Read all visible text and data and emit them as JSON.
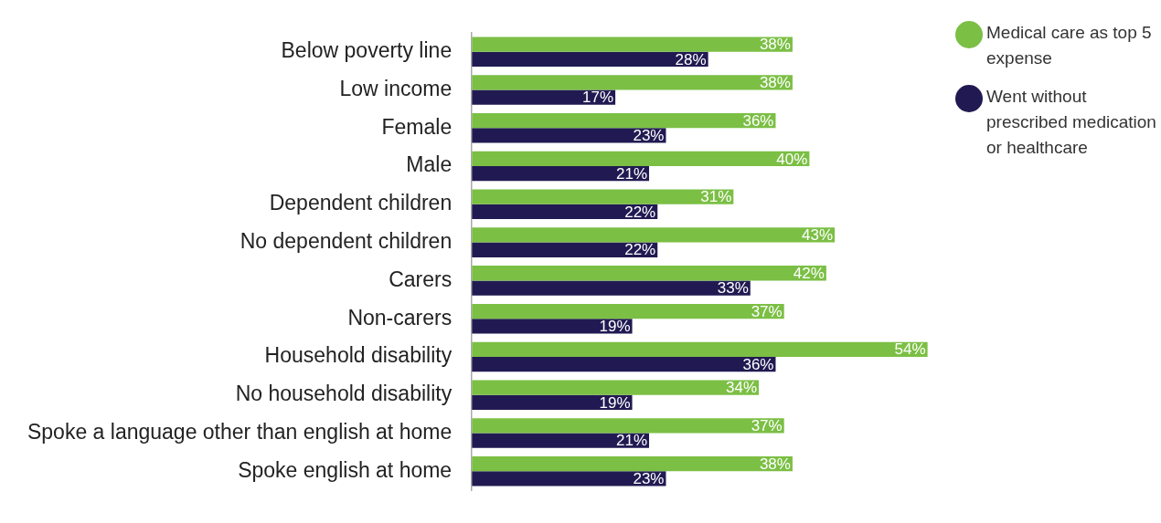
{
  "chart_data": {
    "type": "bar",
    "orientation": "horizontal",
    "legend": "top right",
    "tick_labels": "y",
    "categories": [
      "Below poverty line",
      "Low income",
      "Female",
      "Male",
      "Dependent children",
      "No dependent children",
      "Carers",
      "Non-carers",
      "Household disability",
      "No household disability",
      "Spoke a language other than english at home",
      "Spoke english at home"
    ],
    "series": [
      {
        "name": "Medical care as top 5 expense",
        "color": "#7bbf44",
        "values": [
          38,
          38,
          36,
          40,
          31,
          43,
          42,
          37,
          54,
          34,
          37,
          38
        ],
        "value_labels": [
          "38%",
          "38%",
          "36%",
          "40%",
          "31%",
          "43%",
          "42%",
          "37%",
          "54%",
          "34%",
          "37%",
          "38%"
        ]
      },
      {
        "name": "Went without prescribed medication or healthcare",
        "color": "#211a52",
        "values": [
          28,
          17,
          23,
          21,
          22,
          22,
          33,
          19,
          36,
          19,
          21,
          23
        ],
        "value_labels": [
          "28%",
          "17%",
          "23%",
          "21%",
          "22%",
          "22%",
          "33%",
          "19%",
          "36%",
          "19%",
          "21%",
          "23%"
        ]
      }
    ]
  }
}
